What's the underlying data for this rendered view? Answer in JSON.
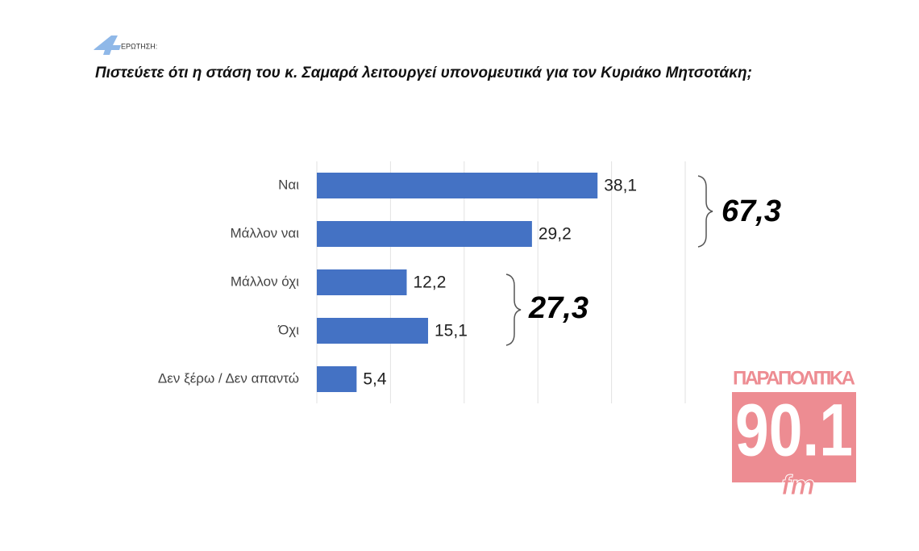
{
  "chart_data": {
    "type": "bar",
    "orientation": "horizontal",
    "question_number": "4",
    "question_label": "ΕΡΩΤΗΣΗ:",
    "title": "Πιστεύετε ότι η στάση του κ. Σαμαρά λειτουργεί υπονομευτικά για τον Κυριάκο Μητσοτάκη;",
    "categories": [
      "Ναι",
      "Μάλλον ναι",
      "Μάλλον όχι",
      "Όχι",
      "Δεν ξέρω / Δεν απαντώ"
    ],
    "values": [
      38.1,
      29.2,
      12.2,
      15.1,
      5.4
    ],
    "value_labels": [
      "38,1",
      "29,2",
      "12,2",
      "15,1",
      "5,4"
    ],
    "color": "#4472c4",
    "xlim": [
      0,
      50
    ],
    "xticks": [
      0,
      10,
      20,
      30,
      40,
      50
    ],
    "grid": true,
    "annotations": [
      "67,3",
      "27,3"
    ],
    "watermark": {
      "name": "ΠΑΡΑΠΟΛΙΤΙΚΑ",
      "frequency": "90.1",
      "band": "fm"
    }
  }
}
